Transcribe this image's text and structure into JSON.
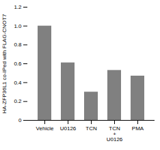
{
  "chart_data": {
    "type": "bar",
    "categories": [
      "Vehicle",
      "U0126",
      "TCN",
      "TCN\n+\nU0126",
      "PMA"
    ],
    "values": [
      1.0,
      0.61,
      0.3,
      0.53,
      0.47
    ],
    "color": "#808080",
    "ylabel": "HA-ZFP36L1 co-IPed with FLAG-CNOT7",
    "ylim": [
      0,
      1.2
    ],
    "yticks": [
      0,
      0.2,
      0.4,
      0.6,
      0.8,
      {
        "value": 1.0,
        "label": "1.0"
      },
      1.2
    ]
  }
}
